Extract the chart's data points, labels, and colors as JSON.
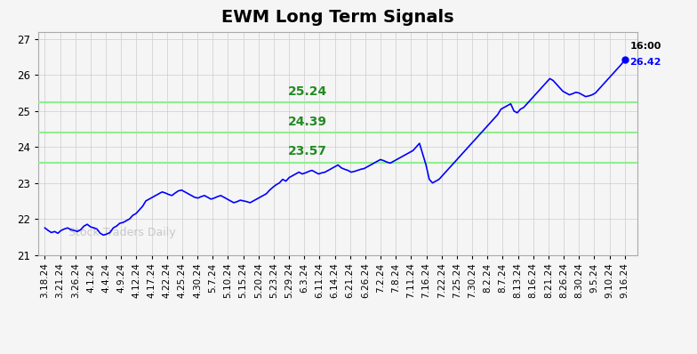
{
  "title": "EWM Long Term Signals",
  "x_labels": [
    "3.18.24",
    "3.21.24",
    "3.26.24",
    "4.1.24",
    "4.4.24",
    "4.9.24",
    "4.12.24",
    "4.17.24",
    "4.22.24",
    "4.25.24",
    "4.30.24",
    "5.7.24",
    "5.10.24",
    "5.15.24",
    "5.20.24",
    "5.23.24",
    "5.29.24",
    "6.3.24",
    "6.11.24",
    "6.14.24",
    "6.21.24",
    "6.26.24",
    "7.2.24",
    "7.8.24",
    "7.11.24",
    "7.16.24",
    "7.22.24",
    "7.25.24",
    "7.30.24",
    "8.2.24",
    "8.7.24",
    "8.13.24",
    "8.16.24",
    "8.21.24",
    "8.26.24",
    "8.30.24",
    "9.5.24",
    "9.10.24",
    "9.16.24"
  ],
  "y_values": [
    21.75,
    21.68,
    21.62,
    21.65,
    21.6,
    21.68,
    21.72,
    21.75,
    21.7,
    21.68,
    21.65,
    21.7,
    21.8,
    21.85,
    21.78,
    21.75,
    21.72,
    21.6,
    21.55,
    21.58,
    21.62,
    21.75,
    21.8,
    21.88,
    21.9,
    21.95,
    22.0,
    22.1,
    22.15,
    22.25,
    22.35,
    22.5,
    22.55,
    22.6,
    22.65,
    22.7,
    22.75,
    22.72,
    22.68,
    22.65,
    22.72,
    22.78,
    22.8,
    22.75,
    22.7,
    22.65,
    22.6,
    22.58,
    22.62,
    22.65,
    22.6,
    22.55,
    22.58,
    22.62,
    22.65,
    22.6,
    22.55,
    22.5,
    22.45,
    22.48,
    22.52,
    22.5,
    22.48,
    22.45,
    22.5,
    22.55,
    22.6,
    22.65,
    22.7,
    22.8,
    22.88,
    22.95,
    23.0,
    23.1,
    23.05,
    23.15,
    23.2,
    23.25,
    23.3,
    23.25,
    23.28,
    23.32,
    23.35,
    23.3,
    23.25,
    23.28,
    23.3,
    23.35,
    23.4,
    23.45,
    23.5,
    23.42,
    23.38,
    23.35,
    23.3,
    23.32,
    23.35,
    23.38,
    23.4,
    23.45,
    23.5,
    23.55,
    23.6,
    23.65,
    23.62,
    23.58,
    23.55,
    23.6,
    23.65,
    23.7,
    23.75,
    23.8,
    23.85,
    23.9,
    24.0,
    24.1,
    23.8,
    23.5,
    23.1,
    23.0,
    23.05,
    23.1,
    23.2,
    23.3,
    23.4,
    23.5,
    23.6,
    23.7,
    23.8,
    23.9,
    24.0,
    24.1,
    24.2,
    24.3,
    24.4,
    24.5,
    24.6,
    24.7,
    24.8,
    24.9,
    25.05,
    25.1,
    25.15,
    25.2,
    25.0,
    24.95,
    25.05,
    25.1,
    25.2,
    25.3,
    25.4,
    25.5,
    25.6,
    25.7,
    25.8,
    25.9,
    25.85,
    25.75,
    25.65,
    25.55,
    25.5,
    25.45,
    25.48,
    25.52,
    25.5,
    25.45,
    25.4,
    25.42,
    25.45,
    25.5,
    25.6,
    25.7,
    25.8,
    25.9,
    26.0,
    26.1,
    26.2,
    26.3,
    26.42
  ],
  "line_color": "#0000FF",
  "hlines": [
    25.24,
    24.39,
    23.57
  ],
  "hline_color": "#90EE90",
  "hline_labels": [
    "25.24",
    "24.39",
    "23.57"
  ],
  "hline_label_color": "#228B22",
  "watermark": "Stock Traders Daily",
  "watermark_color": "#C0C0C0",
  "last_label_time": "16:00",
  "last_label_value": "26.42",
  "last_label_value_color": "#0000FF",
  "last_label_time_color": "#000000",
  "dot_color": "#0000FF",
  "ylim": [
    21.0,
    27.2
  ],
  "yticks": [
    21,
    22,
    23,
    24,
    25,
    26,
    27
  ],
  "background_color": "#F5F5F5",
  "grid_color": "#CCCCCC",
  "title_fontsize": 14,
  "tick_fontsize": 7.5
}
